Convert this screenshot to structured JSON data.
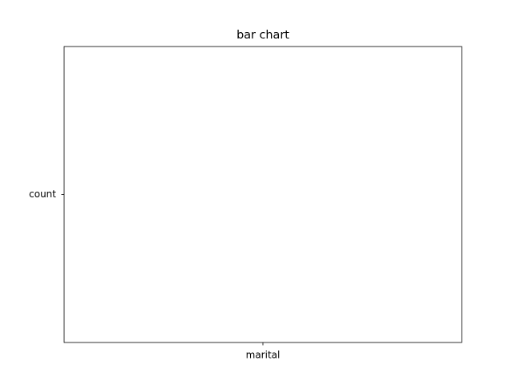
{
  "chart_data": {
    "type": "bar",
    "title": "bar chart",
    "categories": [
      "marital"
    ],
    "y_categories": [
      "count"
    ]
  }
}
